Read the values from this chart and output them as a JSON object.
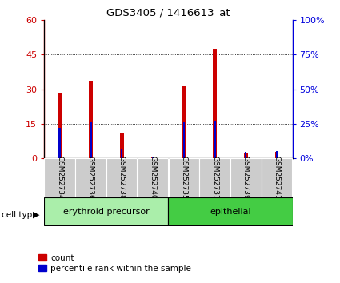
{
  "title": "GDS3405 / 1416613_at",
  "samples": [
    "GSM252734",
    "GSM252736",
    "GSM252738",
    "GSM252740",
    "GSM252735",
    "GSM252737",
    "GSM252739",
    "GSM252741"
  ],
  "red_values": [
    28.5,
    33.5,
    11.0,
    0.5,
    31.5,
    47.5,
    2.0,
    3.0
  ],
  "blue_pct": [
    22.0,
    26.0,
    7.0,
    1.5,
    26.0,
    27.5,
    5.0,
    5.5
  ],
  "cell_types": [
    {
      "label": "erythroid precursor",
      "start": 0,
      "end": 4,
      "color": "#aaeeaa"
    },
    {
      "label": "epithelial",
      "start": 4,
      "end": 8,
      "color": "#44cc44"
    }
  ],
  "ylim_left": [
    0,
    60
  ],
  "ylim_right": [
    0,
    100
  ],
  "yticks_left": [
    0,
    15,
    30,
    45,
    60
  ],
  "ytick_labels_left": [
    "0",
    "15",
    "30",
    "45",
    "60"
  ],
  "yticks_right": [
    0,
    25,
    50,
    75,
    100
  ],
  "ytick_labels_right": [
    "0%",
    "25%",
    "50%",
    "75%",
    "100%"
  ],
  "red_bar_width": 0.12,
  "blue_bar_width": 0.06,
  "red_color": "#cc0000",
  "blue_color": "#0000cc",
  "legend_red_label": "count",
  "legend_blue_label": "percentile rank within the sample",
  "cell_type_label": "cell type"
}
